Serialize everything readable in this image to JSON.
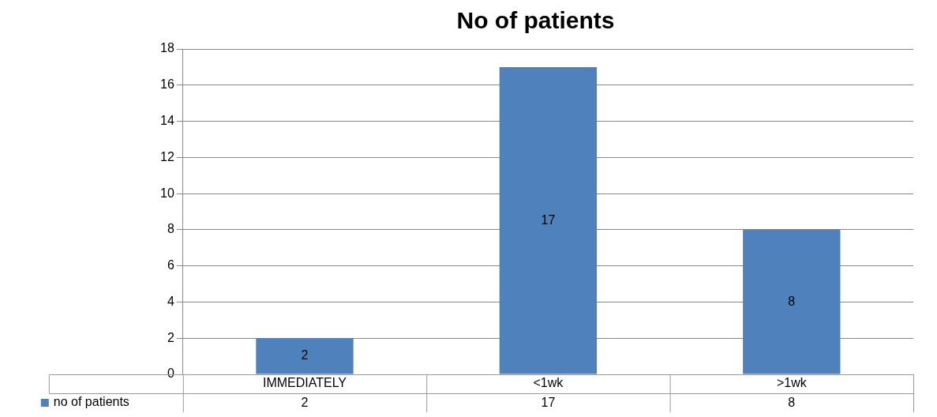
{
  "chart_data": {
    "type": "bar",
    "title": "No of patients",
    "categories": [
      "IMMEDIATELY",
      "<1wk",
      ">1wk"
    ],
    "series": [
      {
        "name": "no of patients",
        "color": "#4f81bd",
        "values": [
          2,
          17,
          8
        ]
      }
    ],
    "ylim": [
      0,
      18
    ],
    "yticks": [
      0,
      2,
      4,
      6,
      8,
      10,
      12,
      14,
      16,
      18
    ],
    "annotations": [
      "2",
      "17",
      "8"
    ],
    "grid": "y",
    "legend": "bottom",
    "data_labels": true
  }
}
